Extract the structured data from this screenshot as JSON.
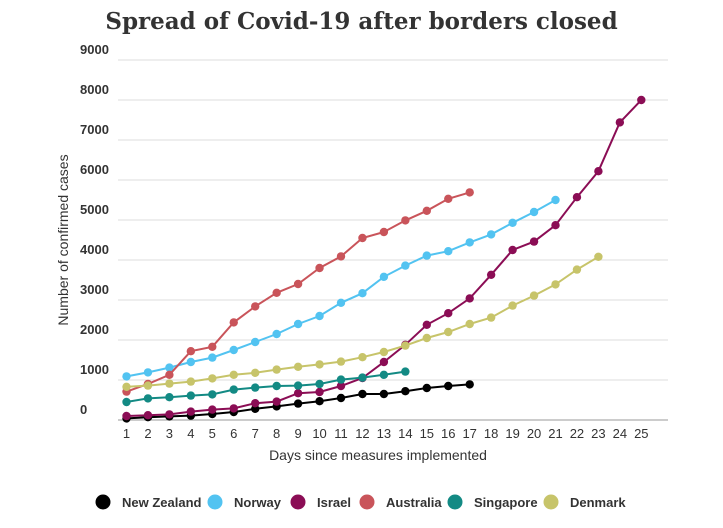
{
  "chart_data": {
    "type": "line",
    "title": "Spread of Covid-19 after borders closed",
    "xlabel": "Days since measures implemented",
    "ylabel": "Number of confirmed cases",
    "xlim": [
      1,
      25
    ],
    "ylim": [
      0,
      9000
    ],
    "yticks": [
      "0",
      "1000",
      "2000",
      "3000",
      "4000",
      "5000",
      "6000",
      "7000",
      "8000",
      "9000"
    ],
    "xticks": [
      "1",
      "2",
      "3",
      "4",
      "5",
      "6",
      "7",
      "8",
      "9",
      "10",
      "11",
      "12",
      "13",
      "14",
      "15",
      "16",
      "17",
      "18",
      "19",
      "20",
      "21",
      "22",
      "23",
      "24",
      "25"
    ],
    "grid": true,
    "legend_position": "bottom",
    "series": [
      {
        "name": "New Zealand",
        "color": "#000000",
        "x": [
          1,
          2,
          3,
          4,
          5,
          6,
          7,
          8,
          9,
          10,
          11,
          12,
          13,
          14,
          15,
          16,
          17
        ],
        "values": [
          40,
          70,
          90,
          110,
          150,
          200,
          280,
          340,
          410,
          470,
          550,
          650,
          650,
          720,
          800,
          850,
          890
        ]
      },
      {
        "name": "Norway",
        "color": "#52c3f1",
        "x": [
          1,
          2,
          3,
          4,
          5,
          6,
          7,
          8,
          9,
          10,
          11,
          12,
          13,
          14,
          15,
          16,
          17,
          18,
          19,
          20,
          21
        ],
        "values": [
          1090,
          1190,
          1310,
          1450,
          1560,
          1750,
          1950,
          2150,
          2400,
          2600,
          2930,
          3170,
          3580,
          3860,
          4110,
          4220,
          4440,
          4640,
          4930,
          5200,
          5500
        ]
      },
      {
        "name": "Israel",
        "color": "#8b0d55",
        "x": [
          1,
          2,
          3,
          4,
          5,
          6,
          7,
          8,
          9,
          10,
          11,
          12,
          13,
          14,
          15,
          16,
          17,
          18,
          19,
          20,
          21,
          22,
          23,
          24,
          25
        ],
        "values": [
          100,
          120,
          140,
          210,
          260,
          290,
          420,
          460,
          670,
          700,
          850,
          1050,
          1450,
          1880,
          2380,
          2670,
          3040,
          3630,
          4250,
          4460,
          4870,
          5570,
          6220,
          7440,
          8000
        ]
      },
      {
        "name": "Australia",
        "color": "#c9545a",
        "x": [
          1,
          2,
          3,
          4,
          5,
          6,
          7,
          8,
          9,
          10,
          11,
          12,
          13,
          14,
          15,
          16,
          17
        ],
        "values": [
          710,
          900,
          1130,
          1720,
          1830,
          2440,
          2840,
          3180,
          3400,
          3800,
          4090,
          4550,
          4700,
          4990,
          5230,
          5530,
          5690
        ]
      },
      {
        "name": "Singapore",
        "color": "#138a84",
        "x": [
          1,
          2,
          3,
          4,
          5,
          6,
          7,
          8,
          9,
          10,
          11,
          12,
          13,
          14
        ],
        "values": [
          450,
          540,
          570,
          610,
          640,
          760,
          810,
          850,
          860,
          900,
          1010,
          1060,
          1130,
          1210
        ]
      },
      {
        "name": "Denmark",
        "color": "#c7c46a",
        "x": [
          1,
          2,
          3,
          4,
          5,
          6,
          7,
          8,
          9,
          10,
          11,
          12,
          13,
          14,
          15,
          16,
          17,
          18,
          19,
          20,
          21,
          22,
          23
        ],
        "values": [
          830,
          860,
          910,
          960,
          1040,
          1130,
          1180,
          1260,
          1330,
          1390,
          1460,
          1570,
          1700,
          1860,
          2050,
          2200,
          2400,
          2560,
          2860,
          3110,
          3390,
          3760,
          4080
        ]
      }
    ]
  }
}
